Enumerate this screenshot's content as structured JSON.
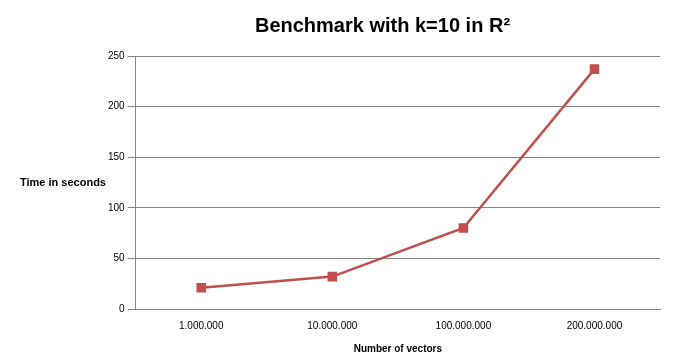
{
  "chart_data": {
    "type": "line",
    "title": "Benchmark with k=10 in R²",
    "x_label": "Number of vectors",
    "y_label": "Time in seconds",
    "categories": [
      "1.000.000",
      "10.000.000",
      "100.000.000",
      "200.000.000"
    ],
    "values": [
      21,
      32,
      80,
      237
    ],
    "color": "#c0504d",
    "marker": "square",
    "line_style": "solid",
    "ylim": [
      0,
      250
    ],
    "yticks": [
      0,
      50,
      100,
      150,
      200,
      250
    ],
    "grid": true
  }
}
